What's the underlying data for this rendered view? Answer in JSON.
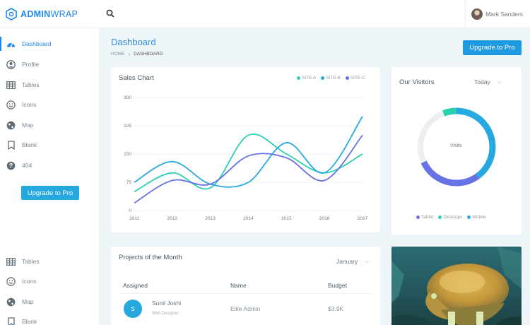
{
  "app": {
    "brand_bold": "ADMIN",
    "brand_light": "WRAP"
  },
  "header": {
    "user_name": "Mark Sanders"
  },
  "sidebar": {
    "items": [
      {
        "label": "Dashboard",
        "icon": "dashboard-icon"
      },
      {
        "label": "Profile",
        "icon": "profile-icon"
      },
      {
        "label": "Tables",
        "icon": "tables-icon"
      },
      {
        "label": "Icons",
        "icon": "smiley-icon"
      },
      {
        "label": "Map",
        "icon": "globe-icon"
      },
      {
        "label": "Blank",
        "icon": "bookmark-icon"
      },
      {
        "label": "404",
        "icon": "help-icon"
      }
    ],
    "upgrade_label": "Upgrade to Pro",
    "bottom_items": [
      {
        "label": "Tables",
        "icon": "tables-icon"
      },
      {
        "label": "Icons",
        "icon": "smiley-icon"
      },
      {
        "label": "Map",
        "icon": "globe-icon"
      },
      {
        "label": "Blank",
        "icon": "bookmark-icon"
      }
    ]
  },
  "page": {
    "title": "Dashboard",
    "breadcrumb": {
      "home": "HOME",
      "current": "DASHBOARD"
    },
    "upgrade_label": "Upgrade to Pro"
  },
  "sales_chart": {
    "title": "Sales Chart"
  },
  "chart_data": {
    "type": "line",
    "title": "Sales Chart",
    "x": [
      "2011",
      "2012",
      "2013",
      "2014",
      "2015",
      "2016",
      "2017"
    ],
    "y_ticks": [
      0,
      75,
      150,
      225,
      300
    ],
    "ylim": [
      0,
      300
    ],
    "series": [
      {
        "name": "SITE A",
        "color": "#2bd0b2",
        "values": [
          50,
          100,
          60,
          200,
          150,
          100,
          150
        ]
      },
      {
        "name": "SITE B",
        "color": "#26a9e0",
        "values": [
          75,
          130,
          70,
          75,
          180,
          100,
          250
        ]
      },
      {
        "name": "SITE C",
        "color": "#6772e5",
        "values": [
          20,
          80,
          70,
          145,
          140,
          80,
          200
        ]
      }
    ],
    "grid": true
  },
  "visitors": {
    "title": "Our Visitors",
    "period": "Today",
    "center_label": "Visits",
    "legend": [
      "Tablet",
      "Desktops",
      "Mobile"
    ],
    "colors": {
      "Tablet": "#6772e5",
      "Desktops": "#2bd0b2",
      "Mobile": "#26a9e0",
      "Empty": "#eceff1"
    },
    "shares": {
      "Mobile": 0.4,
      "Tablet": 0.28,
      "Desktops": 0.06
    }
  },
  "projects": {
    "title": "Projects of the Month",
    "month": "January",
    "columns": [
      "Assigned",
      "Name",
      "Budget"
    ],
    "rows": [
      {
        "initial": "S",
        "person": "Sunil Joshi",
        "role": "Web Designer",
        "name": "Elite Admin",
        "budget": "$3.9K"
      }
    ]
  },
  "colors": {
    "accent": "#1e88e5",
    "button": "#26a7e0"
  }
}
